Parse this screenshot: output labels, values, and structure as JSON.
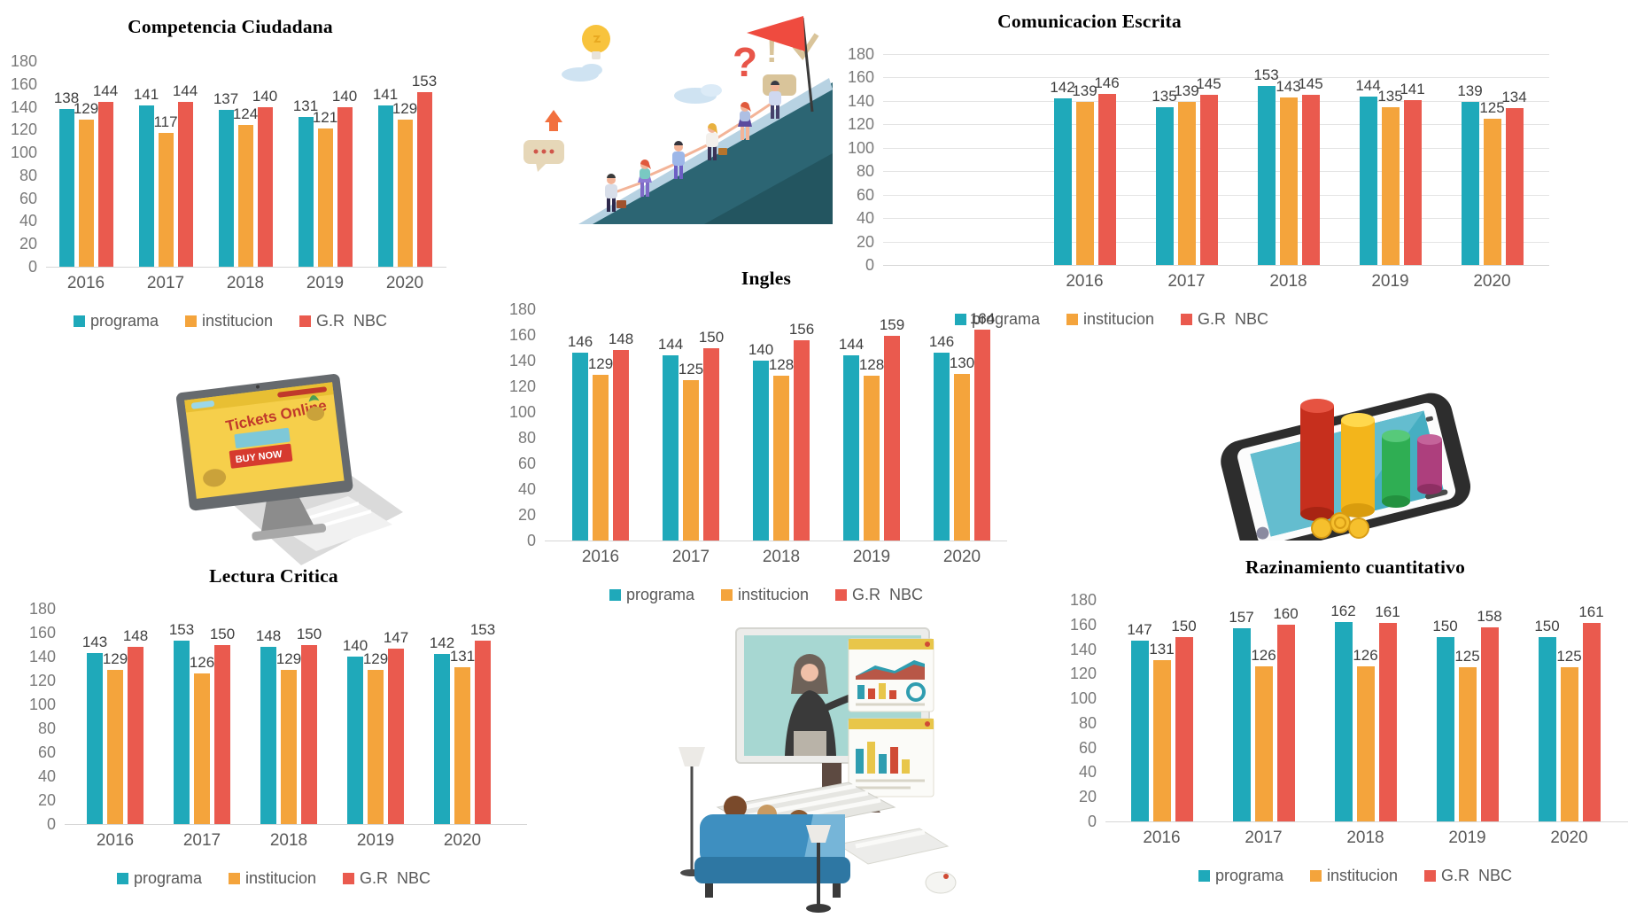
{
  "colors": {
    "programa": "#1fa9ba",
    "institucion": "#f4a43c",
    "gr_nbc": "#ea5a4e",
    "axis_text": "#7a7a7a",
    "year_text": "#595959",
    "value_label_text": "#3f3f3f",
    "gridline": "#e4e4e4",
    "background": "#ffffff"
  },
  "chart_data": [
    {
      "id": "competencia-ciudadana",
      "type": "bar",
      "title": "Competencia Ciudadana",
      "categories": [
        "2016",
        "2017",
        "2018",
        "2019",
        "2020"
      ],
      "series": [
        {
          "name": "programa",
          "color": "#1fa9ba",
          "values": [
            138,
            141,
            137,
            131,
            141
          ]
        },
        {
          "name": "institucion",
          "color": "#f4a43c",
          "values": [
            129,
            117,
            124,
            121,
            129
          ]
        },
        {
          "name": "G.R  NBC",
          "color": "#ea5a4e",
          "values": [
            144,
            144,
            140,
            140,
            153
          ]
        }
      ],
      "ylim": [
        0,
        180
      ],
      "ytick_step": 20,
      "gridlines": false,
      "legend_position": "bottom"
    },
    {
      "id": "comunicacion-escrita",
      "type": "bar",
      "title": "Comunicacion Escrita",
      "categories": [
        "2016",
        "2017",
        "2018",
        "2019",
        "2020"
      ],
      "series": [
        {
          "name": "programa",
          "color": "#1fa9ba",
          "values": [
            142,
            135,
            153,
            144,
            139
          ]
        },
        {
          "name": "institucion",
          "color": "#f4a43c",
          "values": [
            139,
            139,
            143,
            135,
            125
          ]
        },
        {
          "name": "G.R  NBC",
          "color": "#ea5a4e",
          "values": [
            146,
            145,
            145,
            141,
            134
          ]
        }
      ],
      "ylim": [
        0,
        180
      ],
      "ytick_step": 20,
      "gridlines": true,
      "legend_position": "bottom"
    },
    {
      "id": "ingles",
      "type": "bar",
      "title": "Ingles",
      "categories": [
        "2016",
        "2017",
        "2018",
        "2019",
        "2020"
      ],
      "series": [
        {
          "name": "programa",
          "color": "#1fa9ba",
          "values": [
            146,
            144,
            140,
            144,
            146
          ]
        },
        {
          "name": "institucion",
          "color": "#f4a43c",
          "values": [
            129,
            125,
            128,
            128,
            130
          ]
        },
        {
          "name": "G.R  NBC",
          "color": "#ea5a4e",
          "values": [
            148,
            150,
            156,
            159,
            164
          ]
        }
      ],
      "ylim": [
        0,
        180
      ],
      "ytick_step": 20,
      "gridlines": false,
      "legend_position": "bottom"
    },
    {
      "id": "lectura-critica",
      "type": "bar",
      "title": "Lectura Critica",
      "categories": [
        "2016",
        "2017",
        "2018",
        "2019",
        "2020"
      ],
      "series": [
        {
          "name": "programa",
          "color": "#1fa9ba",
          "values": [
            143,
            153,
            148,
            140,
            142
          ]
        },
        {
          "name": "institucion",
          "color": "#f4a43c",
          "values": [
            129,
            126,
            129,
            129,
            131
          ]
        },
        {
          "name": "G.R  NBC",
          "color": "#ea5a4e",
          "values": [
            148,
            150,
            150,
            147,
            153
          ]
        }
      ],
      "ylim": [
        0,
        180
      ],
      "ytick_step": 20,
      "gridlines": false,
      "legend_position": "bottom"
    },
    {
      "id": "razinamiento-cuantitativo",
      "type": "bar",
      "title": "Razinamiento cuantitativo",
      "categories": [
        "2016",
        "2017",
        "2018",
        "2019",
        "2020"
      ],
      "series": [
        {
          "name": "programa",
          "color": "#1fa9ba",
          "values": [
            147,
            157,
            162,
            150,
            150
          ]
        },
        {
          "name": "institucion",
          "color": "#f4a43c",
          "values": [
            131,
            126,
            126,
            125,
            125
          ]
        },
        {
          "name": "G.R  NBC",
          "color": "#ea5a4e",
          "values": [
            150,
            160,
            161,
            158,
            161
          ]
        }
      ],
      "ylim": [
        0,
        180
      ],
      "ytick_step": 20,
      "gridlines": false,
      "legend_position": "bottom"
    }
  ],
  "illustrations": {
    "teamwork_climb": {
      "description": "team of people holding hands climbing a mountain toward a red flag"
    },
    "monitor": {
      "screen_title": "Tickets Online",
      "button_label": "BUY NOW"
    },
    "phone_chart": {
      "description": "smartphone with 3D cylinder bars and coins"
    },
    "webinar": {
      "description": "people on a couch watching an online presentation on a large monitor"
    }
  }
}
